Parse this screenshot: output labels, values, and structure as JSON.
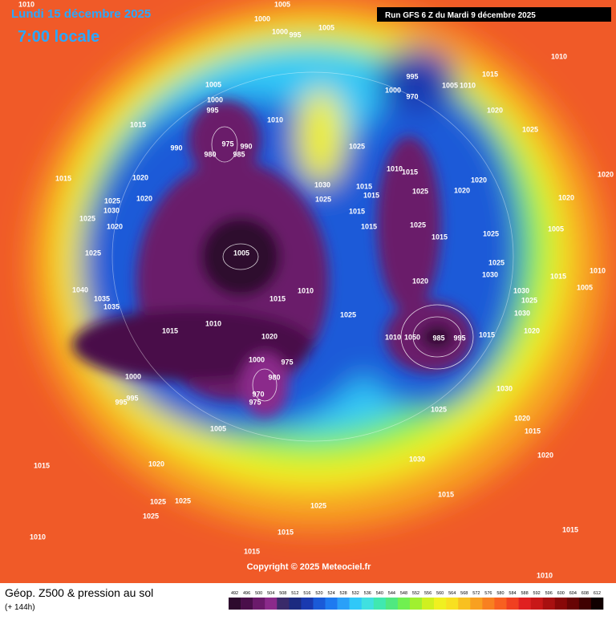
{
  "header": {
    "date": "Lundi 15 décembre 2025",
    "time": "7:00 locale",
    "run": "Run GFS 6 Z du Mardi 9 décembre 2025"
  },
  "footer": {
    "title": "Géop. Z500 & pression au sol",
    "lead": "(+ 144h)",
    "copyright": "Copyright © 2025 Meteociel.fr"
  },
  "legend": {
    "labels": [
      492,
      496,
      500,
      504,
      508,
      512,
      516,
      520,
      524,
      528,
      532,
      536,
      540,
      544,
      548,
      552,
      556,
      560,
      564,
      568,
      572,
      576,
      580,
      584,
      588,
      592,
      596,
      600,
      604,
      608,
      612
    ],
    "colors": [
      "#2d0a2d",
      "#4a0f4a",
      "#6b1a6b",
      "#8b2a8b",
      "#3a2a6a",
      "#1c2a80",
      "#1a3ab0",
      "#1a5ad8",
      "#1e7af0",
      "#2aa0f8",
      "#30c8f8",
      "#40e0e0",
      "#40e8b0",
      "#50e880",
      "#70f050",
      "#a0f030",
      "#d0f020",
      "#f0f020",
      "#f8e020",
      "#f8c020",
      "#f8a020",
      "#f88020",
      "#f86020",
      "#f04020",
      "#e02020",
      "#c81818",
      "#a81010",
      "#880808",
      "#680404",
      "#400202",
      "#100000"
    ]
  },
  "isobars": [
    1010,
    1005,
    1000,
    1000,
    995,
    1005,
    1010,
    1015,
    1005,
    1000,
    995,
    1010,
    1015,
    975,
    990,
    980,
    985,
    990,
    1015,
    1020,
    1020,
    1025,
    1030,
    1025,
    1020,
    1025,
    1040,
    1035,
    1035,
    1005,
    1015,
    1010,
    1010,
    1015,
    1020,
    1000,
    975,
    980,
    970,
    975,
    1000,
    995,
    995,
    1005,
    1015,
    1020,
    1025,
    1025,
    1025,
    1010,
    1025,
    1015,
    1015,
    1030,
    1025,
    1025,
    1015,
    1015,
    1015,
    1015,
    1025,
    1010,
    1050,
    985,
    995,
    1015,
    1030,
    1025,
    1030,
    1015,
    1020,
    1015,
    1020,
    1015,
    1010,
    995,
    1000,
    970,
    1005,
    1010,
    1020,
    1025,
    1010,
    1015,
    1025,
    1020,
    1020,
    1025,
    1015,
    1020,
    1025,
    1025,
    1030,
    1030,
    1025,
    1030,
    1020,
    1020,
    1020,
    1005,
    1015,
    1010,
    1005
  ]
}
